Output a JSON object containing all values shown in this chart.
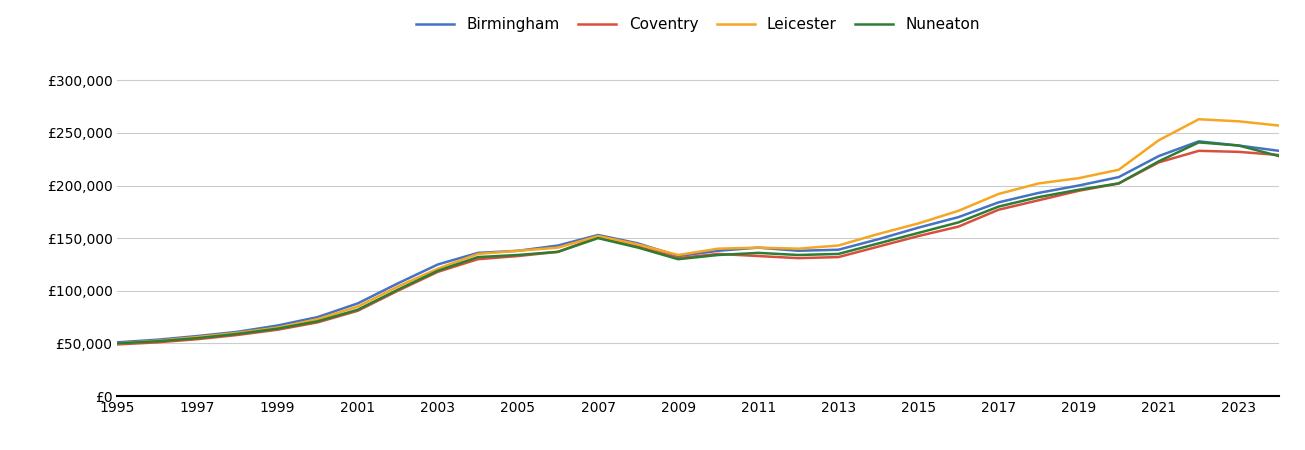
{
  "title": "",
  "legend_labels": [
    "Birmingham",
    "Coventry",
    "Leicester",
    "Nuneaton"
  ],
  "line_colors": [
    "#4472c4",
    "#d94f3d",
    "#f5a623",
    "#2e7d32"
  ],
  "years": [
    1995,
    1996,
    1997,
    1998,
    1999,
    2000,
    2001,
    2002,
    2003,
    2004,
    2005,
    2006,
    2007,
    2008,
    2009,
    2010,
    2011,
    2012,
    2013,
    2014,
    2015,
    2016,
    2017,
    2018,
    2019,
    2020,
    2021,
    2022,
    2023,
    2024
  ],
  "Birmingham": [
    51000,
    53500,
    57000,
    61000,
    67000,
    75000,
    88000,
    107000,
    125000,
    136000,
    138000,
    143000,
    153000,
    145000,
    133000,
    138000,
    141000,
    138000,
    139000,
    149000,
    160000,
    170000,
    184000,
    193000,
    200000,
    208000,
    228000,
    242000,
    238000,
    233000
  ],
  "Coventry": [
    49000,
    51000,
    54000,
    58000,
    63000,
    70000,
    81000,
    100000,
    118000,
    130000,
    133000,
    137000,
    151000,
    142000,
    131000,
    135000,
    133000,
    131000,
    132000,
    142000,
    152000,
    161000,
    177000,
    186000,
    195000,
    202000,
    222000,
    233000,
    232000,
    229000
  ],
  "Leicester": [
    50000,
    52500,
    56000,
    60000,
    65000,
    73000,
    85000,
    104000,
    121000,
    135000,
    138000,
    141000,
    152000,
    144000,
    134000,
    140000,
    141000,
    140000,
    143000,
    154000,
    164000,
    176000,
    192000,
    202000,
    207000,
    215000,
    243000,
    263000,
    261000,
    257000
  ],
  "Nuneaton": [
    50000,
    52000,
    55000,
    59000,
    64000,
    71000,
    82000,
    101000,
    119000,
    132000,
    134000,
    137000,
    150000,
    141000,
    130000,
    134000,
    136000,
    134000,
    135000,
    145000,
    155000,
    165000,
    180000,
    189000,
    196000,
    202000,
    223000,
    241000,
    238000,
    228000
  ],
  "ylim": [
    0,
    325000
  ],
  "yticks": [
    0,
    50000,
    100000,
    150000,
    200000,
    250000,
    300000
  ],
  "xlim": [
    1995,
    2024
  ],
  "xticks": [
    1995,
    1997,
    1999,
    2001,
    2003,
    2005,
    2007,
    2009,
    2011,
    2013,
    2015,
    2017,
    2019,
    2021,
    2023
  ],
  "background_color": "#ffffff",
  "grid_color": "#cccccc",
  "line_width": 1.8,
  "tick_fontsize": 10,
  "legend_fontsize": 11
}
